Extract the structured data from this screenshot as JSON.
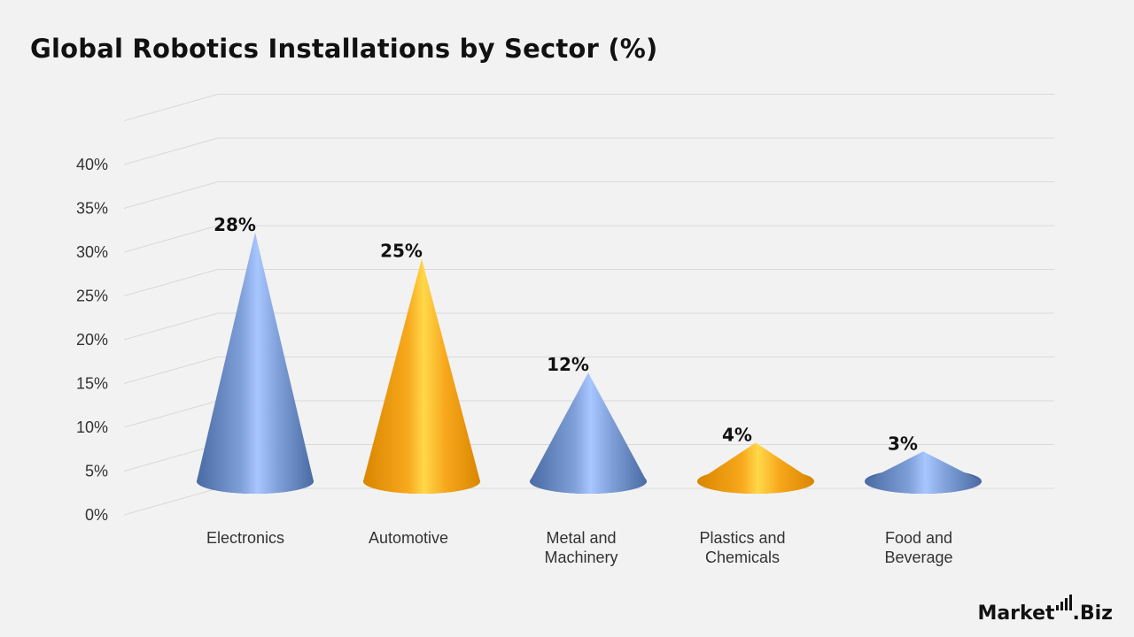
{
  "title": "Global Robotics Installations by Sector (%)",
  "brand": {
    "name_main": "Market",
    "name_suffix": ".Biz"
  },
  "colors": {
    "blue": "#6f90cc",
    "orange": "#f8a81c",
    "grid": "#d9d9d9",
    "background": "#f2f2f2"
  },
  "chart_data": {
    "type": "bar",
    "shape": "cone",
    "title": "Global Robotics Installations by Sector (%)",
    "categories": [
      "Electronics",
      "Automotive",
      "Metal and Machinery",
      "Plastics and Chemicals",
      "Food and Beverage"
    ],
    "category_lines": [
      [
        "Electronics"
      ],
      [
        "Automotive"
      ],
      [
        "Metal and",
        "Machinery"
      ],
      [
        "Plastics and",
        "Chemicals"
      ],
      [
        "Food and",
        "Beverage"
      ]
    ],
    "values": [
      28,
      25,
      12,
      4,
      3
    ],
    "data_labels": [
      "28%",
      "25%",
      "12%",
      "4%",
      "3%"
    ],
    "colors": [
      "#6f90cc",
      "#f8a81c",
      "#6f90cc",
      "#f8a81c",
      "#6f90cc"
    ],
    "ylim": [
      0,
      40
    ],
    "yticks": [
      0,
      5,
      10,
      15,
      20,
      25,
      30,
      35,
      40
    ],
    "ytick_labels": [
      "0%",
      "5%",
      "10%",
      "15%",
      "20%",
      "25%",
      "30%",
      "35%",
      "40%"
    ],
    "xlabel": "",
    "ylabel": "",
    "grid": true,
    "legend": "none"
  }
}
